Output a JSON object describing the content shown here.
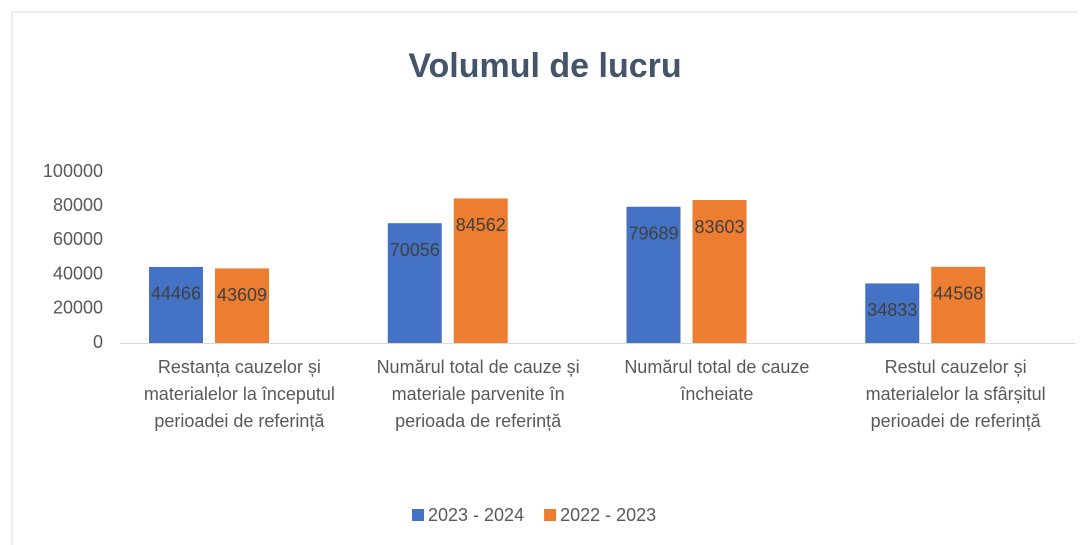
{
  "chart_data": {
    "type": "bar",
    "title": "Volumul de lucru",
    "categories": [
      "Restanța cauzelor și materialelor la începutul perioadei de referință",
      "Numărul total de cauze și materiale parvenite în perioada de referință",
      "Numărul total de cauze încheiate",
      "Restul cauzelor și materialelor la sfârșitul perioadei de referință"
    ],
    "series": [
      {
        "name": "2023 - 2024",
        "color": "#4472c4",
        "values": [
          44466,
          70056,
          79689,
          34833
        ]
      },
      {
        "name": "2022 - 2023",
        "color": "#ed7d31",
        "values": [
          43609,
          84562,
          83603,
          44568
        ]
      }
    ],
    "ylim": [
      0,
      100000
    ],
    "yticks": [
      0,
      20000,
      40000,
      60000,
      80000,
      100000
    ],
    "grid": false,
    "legend": "bottom"
  }
}
